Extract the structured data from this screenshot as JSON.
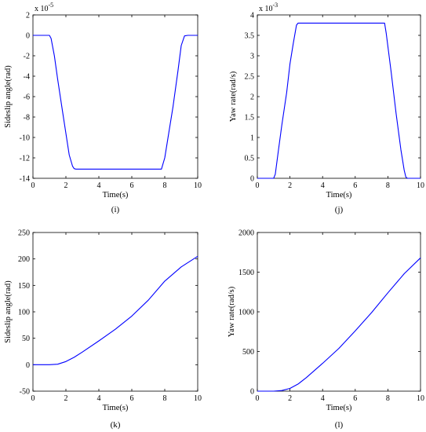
{
  "figure": {
    "panels": [
      {
        "caption": "(i)",
        "exponent_label": "x 10",
        "exponent_power": "-5"
      },
      {
        "caption": "(j)",
        "exponent_label": "x 10",
        "exponent_power": "-3"
      },
      {
        "caption": "(k)",
        "exponent_label": "",
        "exponent_power": ""
      },
      {
        "caption": "(l)",
        "exponent_label": "",
        "exponent_power": ""
      }
    ]
  },
  "colors": {
    "series": "#0000ff",
    "axes": "#000000",
    "background": "#ffffff"
  },
  "chart_data": [
    {
      "type": "line",
      "title": "",
      "xlabel": "Time(s)",
      "ylabel": "Sideslip angle(rad)",
      "xlim": [
        0,
        10
      ],
      "ylim": [
        -14,
        2
      ],
      "xticks": [
        "0",
        "2",
        "4",
        "6",
        "8",
        "10"
      ],
      "yticks": [
        "-14",
        "-12",
        "-10",
        "-8",
        "-6",
        "-4",
        "-2",
        "0",
        "2"
      ],
      "xtick_values": [
        0,
        2,
        4,
        6,
        8,
        10
      ],
      "ytick_values": [
        -14,
        -12,
        -10,
        -8,
        -6,
        -4,
        -2,
        0,
        2
      ],
      "exponent": "x 10^-5",
      "grid": false,
      "series": [
        {
          "x": [
            0,
            1.0,
            1.1,
            1.3,
            1.5,
            1.8,
            2.0,
            2.2,
            2.4,
            2.5,
            2.6,
            3.0,
            5.0,
            7.0,
            7.8,
            8.0,
            8.2,
            8.5,
            8.8,
            9.0,
            9.2,
            9.4,
            10
          ],
          "y": [
            0,
            0,
            -0.3,
            -2.0,
            -4.3,
            -7.5,
            -9.6,
            -11.7,
            -12.8,
            -13.05,
            -13.1,
            -13.1,
            -13.1,
            -13.1,
            -13.1,
            -12.0,
            -10.0,
            -7.0,
            -3.5,
            -1.0,
            -0.05,
            0,
            0
          ]
        }
      ]
    },
    {
      "type": "line",
      "title": "",
      "xlabel": "Time(s)",
      "ylabel": "Yaw rate(rad/s)",
      "xlim": [
        0,
        10
      ],
      "ylim": [
        0,
        4
      ],
      "xticks": [
        "0",
        "2",
        "4",
        "6",
        "8",
        "10"
      ],
      "yticks": [
        "0",
        "0.5",
        "1",
        "1.5",
        "2",
        "2.5",
        "3",
        "3.5",
        "4"
      ],
      "xtick_values": [
        0,
        2,
        4,
        6,
        8,
        10
      ],
      "ytick_values": [
        0,
        0.5,
        1,
        1.5,
        2,
        2.5,
        3,
        3.5,
        4
      ],
      "exponent": "x 10^-3",
      "grid": false,
      "series": [
        {
          "x": [
            0,
            1.0,
            1.1,
            1.3,
            1.5,
            1.8,
            2.0,
            2.2,
            2.4,
            2.5,
            3.0,
            5.0,
            7.0,
            7.8,
            7.9,
            8.2,
            8.5,
            8.8,
            9.0,
            9.1,
            9.2,
            10
          ],
          "y": [
            0,
            0,
            0.1,
            0.7,
            1.3,
            2.1,
            2.8,
            3.3,
            3.75,
            3.8,
            3.8,
            3.8,
            3.8,
            3.8,
            3.55,
            2.6,
            1.6,
            0.7,
            0.2,
            0.03,
            0,
            0
          ]
        }
      ]
    },
    {
      "type": "line",
      "title": "",
      "xlabel": "Time(s)",
      "ylabel": "Sideslip angle(rad)",
      "xlim": [
        0,
        10
      ],
      "ylim": [
        -50,
        250
      ],
      "xticks": [
        "0",
        "2",
        "4",
        "6",
        "8",
        "10"
      ],
      "yticks": [
        "-50",
        "0",
        "50",
        "100",
        "150",
        "200",
        "250"
      ],
      "xtick_values": [
        0,
        2,
        4,
        6,
        8,
        10
      ],
      "ytick_values": [
        -50,
        0,
        50,
        100,
        150,
        200,
        250
      ],
      "exponent": "",
      "grid": false,
      "series": [
        {
          "x": [
            0,
            1.0,
            1.5,
            2.0,
            2.5,
            3.0,
            4.0,
            5.0,
            6.0,
            7.0,
            8.0,
            9.0,
            10.0
          ],
          "y": [
            0,
            0,
            1,
            6,
            14,
            24,
            45,
            67,
            92,
            122,
            158,
            185,
            205
          ]
        }
      ]
    },
    {
      "type": "line",
      "title": "",
      "xlabel": "Time(s)",
      "ylabel": "Yaw rate(rad/s)",
      "xlim": [
        0,
        10
      ],
      "ylim": [
        0,
        2000
      ],
      "xticks": [
        "0",
        "2",
        "4",
        "6",
        "8",
        "10"
      ],
      "yticks": [
        "0",
        "500",
        "1000",
        "1500",
        "2000"
      ],
      "xtick_values": [
        0,
        2,
        4,
        6,
        8,
        10
      ],
      "ytick_values": [
        0,
        500,
        1000,
        1500,
        2000
      ],
      "exponent": "",
      "grid": false,
      "series": [
        {
          "x": [
            0,
            1.0,
            1.5,
            2.0,
            2.5,
            3.0,
            4.0,
            5.0,
            6.0,
            7.0,
            8.0,
            9.0,
            10.0
          ],
          "y": [
            0,
            0,
            8,
            35,
            90,
            170,
            350,
            540,
            760,
            990,
            1240,
            1480,
            1680
          ]
        }
      ]
    }
  ]
}
